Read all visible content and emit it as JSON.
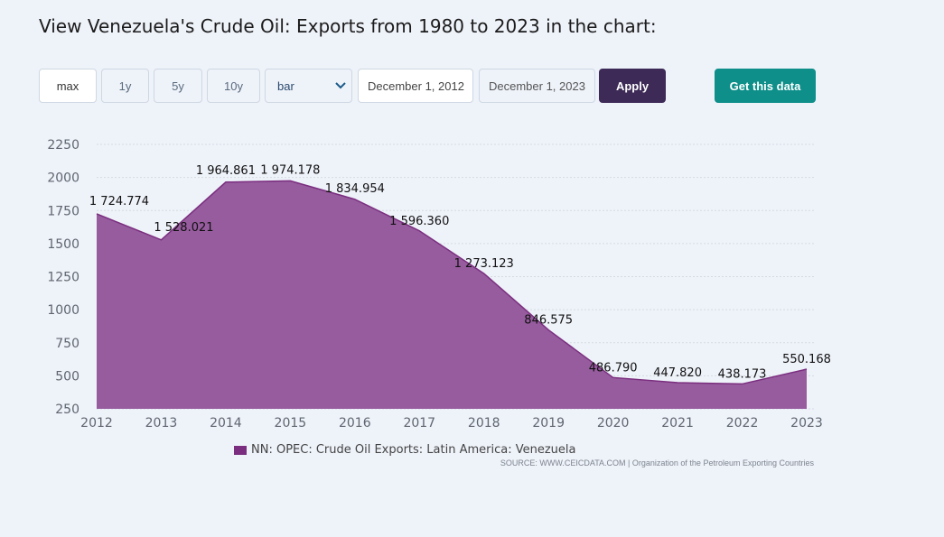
{
  "title": "View Venezuela's Crude Oil: Exports from 1980 to 2023 in the chart:",
  "controls": {
    "range_buttons": [
      "max",
      "1y",
      "5y",
      "10y"
    ],
    "chart_type": "bar",
    "start_date": "December 1, 2012",
    "end_date": "December 1, 2023",
    "apply_label": "Apply",
    "get_data_label": "Get this data"
  },
  "colors": {
    "area_fill": "#965c9e",
    "area_line": "#7b2e7f",
    "apply_bg": "#3d2a57",
    "get_data_bg": "#0e8f8a"
  },
  "chart_data": {
    "type": "area",
    "x": [
      "2012",
      "2013",
      "2014",
      "2015",
      "2016",
      "2017",
      "2018",
      "2019",
      "2020",
      "2021",
      "2022",
      "2023"
    ],
    "series": [
      {
        "name": "NN: OPEC: Crude Oil Exports: Latin America: Venezuela",
        "values": [
          1724.774,
          1528.021,
          1964.861,
          1974.178,
          1834.954,
          1596.36,
          1273.123,
          846.575,
          486.79,
          447.82,
          438.173,
          550.168
        ]
      }
    ],
    "data_labels": [
      "1 724.774",
      "1 528.021",
      "1 964.861",
      "1 974.178",
      "1 834.954",
      "1 596.360",
      "1 273.123",
      "846.575",
      "486.790",
      "447.820",
      "438.173",
      "550.168"
    ],
    "ylim": [
      250,
      2250
    ],
    "yticks": [
      250,
      500,
      750,
      1000,
      1250,
      1500,
      1750,
      2000,
      2250
    ],
    "grid": true,
    "legend": "bottom-center"
  },
  "source": "SOURCE: WWW.CEICDATA.COM | Organization of the Petroleum Exporting Countries"
}
